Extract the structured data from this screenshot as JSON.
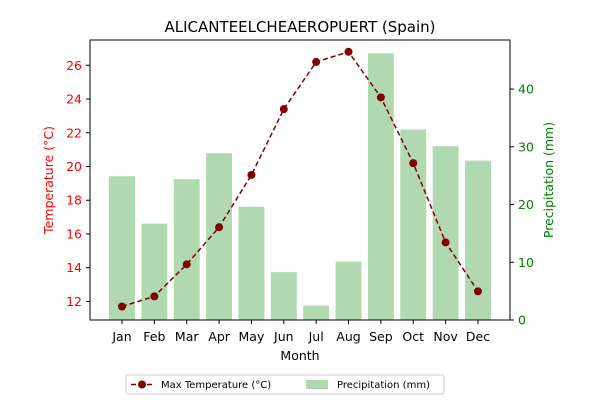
{
  "chart_data": {
    "type": "bar+line",
    "title": "ALICANTEELCHEAEROPUERT (Spain)",
    "xlabel": "Month",
    "categories": [
      "Jan",
      "Feb",
      "Mar",
      "Apr",
      "May",
      "Jun",
      "Jul",
      "Aug",
      "Sep",
      "Oct",
      "Nov",
      "Dec"
    ],
    "left_axis": {
      "label": "Temperature (°C)",
      "color": "#ff0000",
      "ylim": [
        10.9,
        27.5
      ],
      "ticks": [
        12,
        14,
        16,
        18,
        20,
        22,
        24,
        26
      ]
    },
    "right_axis": {
      "label": "Precipitation (mm)",
      "color": "#008000",
      "ylim": [
        0,
        48.5
      ],
      "ticks": [
        0,
        10,
        20,
        30,
        40
      ]
    },
    "series": [
      {
        "name": "Max Temperature (°C)",
        "kind": "line",
        "axis": "left",
        "color": "#800000",
        "style": "dashed",
        "marker": "circle",
        "values": [
          11.7,
          12.3,
          14.2,
          16.4,
          19.5,
          23.4,
          26.2,
          26.8,
          24.1,
          20.2,
          15.5,
          12.6
        ]
      },
      {
        "name": "Precipitation (mm)",
        "kind": "bar",
        "axis": "right",
        "color": "#b1d9b1",
        "values": [
          24.9,
          16.7,
          24.4,
          28.9,
          19.6,
          8.3,
          2.5,
          10.1,
          46.2,
          33.0,
          30.1,
          27.6
        ]
      }
    ],
    "legend": {
      "placement": "bottom-center",
      "columns": 2
    },
    "grid": false
  }
}
